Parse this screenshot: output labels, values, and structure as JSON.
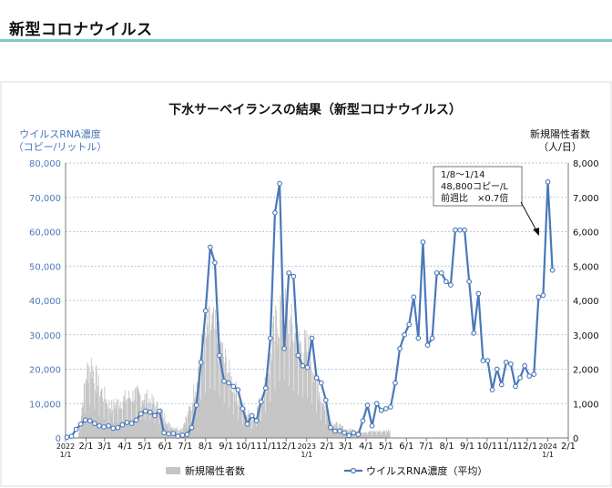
{
  "page": {
    "section_title": "新型コロナウイルス"
  },
  "chart_data": {
    "type": "line",
    "title": "下水サーベイランスの結果（新型コロナウイルス）",
    "left_axis": {
      "label_line1": "ウイルスRNA濃度",
      "label_line2": "（コピー/リットル）",
      "min": 0,
      "max": 80000,
      "ticks": [
        "0",
        "10,000",
        "20,000",
        "30,000",
        "40,000",
        "50,000",
        "60,000",
        "70,000",
        "80,000"
      ],
      "color": "#4a78b8"
    },
    "right_axis": {
      "label_line1": "新規陽性者数",
      "label_line2": "（人/日）",
      "min": 0,
      "max": 8000,
      "ticks": [
        "0",
        "1,000",
        "2,000",
        "3,000",
        "4,000",
        "5,000",
        "6,000",
        "7,000",
        "8,000"
      ]
    },
    "x_axis": {
      "start": "2022-01-01",
      "end": "2024-02-01",
      "ticks": [
        {
          "date": "2022-01-01",
          "label": "2022",
          "sub": "1/1"
        },
        {
          "date": "2022-02-01",
          "label": "2/1"
        },
        {
          "date": "2022-03-01",
          "label": "3/1"
        },
        {
          "date": "2022-04-01",
          "label": "4/1"
        },
        {
          "date": "2022-05-01",
          "label": "5/1"
        },
        {
          "date": "2022-06-01",
          "label": "6/1"
        },
        {
          "date": "2022-07-01",
          "label": "7/1"
        },
        {
          "date": "2022-08-01",
          "label": "8/1"
        },
        {
          "date": "2022-09-01",
          "label": "9/1"
        },
        {
          "date": "2022-10-01",
          "label": "10/1"
        },
        {
          "date": "2022-11-01",
          "label": "11/1"
        },
        {
          "date": "2022-12-01",
          "label": "12/1"
        },
        {
          "date": "2023-01-01",
          "label": "2023",
          "sub": "1/1"
        },
        {
          "date": "2023-02-01",
          "label": "2/1"
        },
        {
          "date": "2023-03-01",
          "label": "3/1"
        },
        {
          "date": "2023-04-01",
          "label": "4/1"
        },
        {
          "date": "2023-05-01",
          "label": "5/1"
        },
        {
          "date": "2023-06-01",
          "label": "6/1"
        },
        {
          "date": "2023-07-01",
          "label": "7/1"
        },
        {
          "date": "2023-08-01",
          "label": "8/1"
        },
        {
          "date": "2023-09-01",
          "label": "9/1"
        },
        {
          "date": "2023-10-01",
          "label": "10/1"
        },
        {
          "date": "2023-11-01",
          "label": "11/1"
        },
        {
          "date": "2023-12-01",
          "label": "12/1"
        },
        {
          "date": "2024-01-01",
          "label": "2024",
          "sub": "1/1"
        },
        {
          "date": "2024-02-01",
          "label": "2/1"
        }
      ]
    },
    "series": [
      {
        "name": "ウイルスRNA濃度（平均）",
        "axis": "left",
        "color": "#4a78b8",
        "style": "line-markers",
        "points": [
          [
            "2022-01-03",
            200
          ],
          [
            "2022-01-10",
            500
          ],
          [
            "2022-01-17",
            2500
          ],
          [
            "2022-01-24",
            4000
          ],
          [
            "2022-01-31",
            5200
          ],
          [
            "2022-02-07",
            5000
          ],
          [
            "2022-02-14",
            4200
          ],
          [
            "2022-02-21",
            3500
          ],
          [
            "2022-02-28",
            3200
          ],
          [
            "2022-03-07",
            3500
          ],
          [
            "2022-03-14",
            2800
          ],
          [
            "2022-03-21",
            3000
          ],
          [
            "2022-03-28",
            3800
          ],
          [
            "2022-04-04",
            4500
          ],
          [
            "2022-04-11",
            4200
          ],
          [
            "2022-04-18",
            5200
          ],
          [
            "2022-04-25",
            7000
          ],
          [
            "2022-05-02",
            7800
          ],
          [
            "2022-05-09",
            7500
          ],
          [
            "2022-05-16",
            6500
          ],
          [
            "2022-05-23",
            7800
          ],
          [
            "2022-05-30",
            1500
          ],
          [
            "2022-06-06",
            1200
          ],
          [
            "2022-06-13",
            1300
          ],
          [
            "2022-06-20",
            500
          ],
          [
            "2022-06-27",
            800
          ],
          [
            "2022-07-04",
            1000
          ],
          [
            "2022-07-11",
            3000
          ],
          [
            "2022-07-18",
            9500
          ],
          [
            "2022-07-25",
            22000
          ],
          [
            "2022-08-01",
            37000
          ],
          [
            "2022-08-08",
            55500
          ],
          [
            "2022-08-15",
            51000
          ],
          [
            "2022-08-22",
            24000
          ],
          [
            "2022-08-29",
            16500
          ],
          [
            "2022-09-05",
            16000
          ],
          [
            "2022-09-12",
            15000
          ],
          [
            "2022-09-19",
            14000
          ],
          [
            "2022-09-26",
            8500
          ],
          [
            "2022-10-03",
            4000
          ],
          [
            "2022-10-10",
            6500
          ],
          [
            "2022-10-17",
            5000
          ],
          [
            "2022-10-24",
            10500
          ],
          [
            "2022-10-31",
            14500
          ],
          [
            "2022-11-07",
            29000
          ],
          [
            "2022-11-14",
            65500
          ],
          [
            "2022-11-21",
            74000
          ],
          [
            "2022-11-28",
            26000
          ],
          [
            "2022-12-05",
            48000
          ],
          [
            "2022-12-12",
            47000
          ],
          [
            "2022-12-19",
            24000
          ],
          [
            "2022-12-26",
            21000
          ],
          [
            "2023-01-02",
            20500
          ],
          [
            "2023-01-09",
            29000
          ],
          [
            "2023-01-16",
            17500
          ],
          [
            "2023-01-23",
            16000
          ],
          [
            "2023-01-30",
            11000
          ],
          [
            "2023-02-06",
            3000
          ],
          [
            "2023-02-13",
            2000
          ],
          [
            "2023-02-20",
            2000
          ],
          [
            "2023-02-27",
            1500
          ],
          [
            "2023-03-06",
            700
          ],
          [
            "2023-03-13",
            1500
          ],
          [
            "2023-03-20",
            1000
          ],
          [
            "2023-03-27",
            5000
          ],
          [
            "2023-04-03",
            9500
          ],
          [
            "2023-04-10",
            3500
          ],
          [
            "2023-04-17",
            10000
          ],
          [
            "2023-04-24",
            8000
          ],
          [
            "2023-05-01",
            8500
          ],
          [
            "2023-05-08",
            9000
          ],
          [
            "2023-05-15",
            16000
          ],
          [
            "2023-05-22",
            26000
          ],
          [
            "2023-05-29",
            30000
          ],
          [
            "2023-06-05",
            33000
          ],
          [
            "2023-06-12",
            41000
          ],
          [
            "2023-06-19",
            29000
          ],
          [
            "2023-06-26",
            57000
          ],
          [
            "2023-07-03",
            27000
          ],
          [
            "2023-07-10",
            29000
          ],
          [
            "2023-07-17",
            48000
          ],
          [
            "2023-07-24",
            48000
          ],
          [
            "2023-07-31",
            45500
          ],
          [
            "2023-08-07",
            44500
          ],
          [
            "2023-08-14",
            60500
          ],
          [
            "2023-08-21",
            60500
          ],
          [
            "2023-08-28",
            60500
          ],
          [
            "2023-09-04",
            45500
          ],
          [
            "2023-09-11",
            30500
          ],
          [
            "2023-09-18",
            42000
          ],
          [
            "2023-09-25",
            22500
          ],
          [
            "2023-10-02",
            22500
          ],
          [
            "2023-10-09",
            14000
          ],
          [
            "2023-10-16",
            20000
          ],
          [
            "2023-10-23",
            15500
          ],
          [
            "2023-10-30",
            22000
          ],
          [
            "2023-11-06",
            21500
          ],
          [
            "2023-11-13",
            15000
          ],
          [
            "2023-11-20",
            17500
          ],
          [
            "2023-11-27",
            21000
          ],
          [
            "2023-12-04",
            18000
          ],
          [
            "2023-12-11",
            18500
          ],
          [
            "2023-12-18",
            41000
          ],
          [
            "2023-12-25",
            41500
          ],
          [
            "2024-01-01",
            74500
          ],
          [
            "2024-01-08",
            48800
          ]
        ]
      },
      {
        "name": "新規陽性者数",
        "axis": "right",
        "color": "#c4c4c4",
        "style": "bars"
      }
    ],
    "callout": {
      "line1": "1/8～1/14",
      "line2": "48,800コピー/L",
      "line3": "前週比　×0.7倍"
    },
    "legend": [
      {
        "name": "新規陽性者数",
        "kind": "bar"
      },
      {
        "name": "ウイルスRNA濃度（平均）",
        "kind": "line"
      }
    ],
    "legend_position": "bottom"
  }
}
